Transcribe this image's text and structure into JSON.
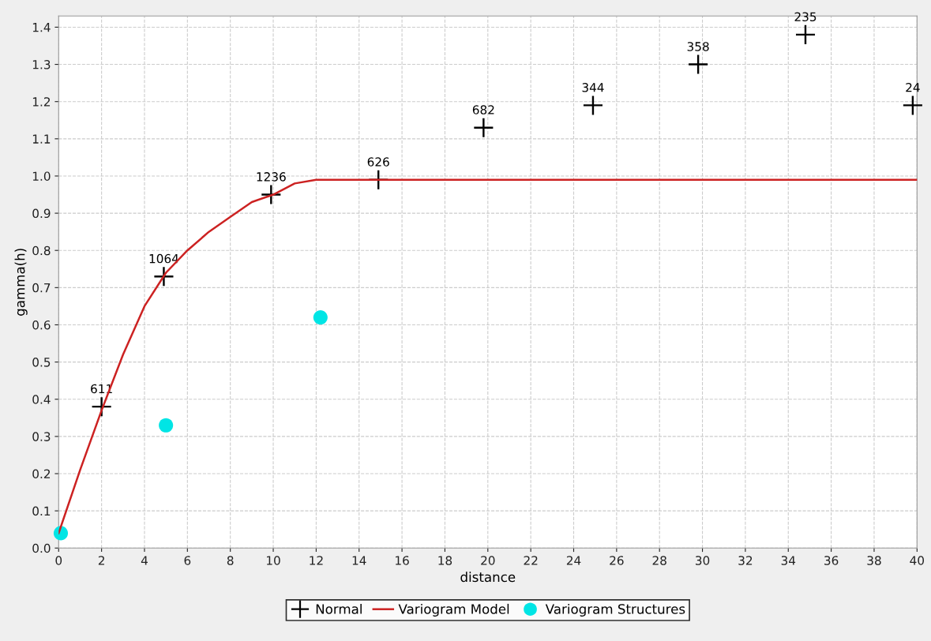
{
  "chart_data": {
    "type": "scatter",
    "xlabel": "distance",
    "ylabel": "gamma(h)",
    "xlim": [
      0,
      40
    ],
    "xticks": [
      0,
      2,
      4,
      6,
      8,
      10,
      12,
      14,
      16,
      18,
      20,
      22,
      24,
      26,
      28,
      30,
      32,
      34,
      36,
      38,
      40
    ],
    "ylim": [
      0,
      1.43
    ],
    "yticks": [
      {
        "value": 0,
        "label": "0.0"
      },
      0.1,
      0.2,
      0.3,
      0.4,
      0.5,
      0.6,
      0.7,
      0.8,
      0.9,
      {
        "value": 1,
        "label": "1.0"
      },
      1.1,
      1.2,
      1.3,
      1.4
    ],
    "grid": true,
    "legend": "bottom",
    "annotations": [
      {
        "text": "611",
        "x": 2,
        "y": 0.38
      },
      {
        "text": "1064",
        "x": 4.9,
        "y": 0.73
      },
      {
        "text": "1236",
        "x": 9.9,
        "y": 0.95
      },
      {
        "text": "626",
        "x": 14.9,
        "y": 0.99
      },
      {
        "text": "682",
        "x": 19.8,
        "y": 1.13
      },
      {
        "text": "344",
        "x": 24.9,
        "y": 1.19
      },
      {
        "text": "358",
        "x": 29.8,
        "y": 1.3
      },
      {
        "text": "235",
        "x": 34.8,
        "y": 1.38
      },
      {
        "text": "24",
        "x": 39.8,
        "y": 1.19
      }
    ],
    "series": [
      {
        "name": "Normal",
        "marker": "cross",
        "color": "#000000",
        "x": [
          2,
          4.9,
          9.9,
          14.9,
          19.8,
          24.9,
          29.8,
          34.8,
          39.8
        ],
        "values": [
          0.38,
          0.73,
          0.95,
          0.99,
          1.13,
          1.19,
          1.3,
          1.38,
          1.19
        ]
      },
      {
        "name": "Variogram Model",
        "type": "line",
        "color": "#cc2222",
        "x": [
          0,
          1,
          2,
          3,
          4,
          5,
          6,
          7,
          8,
          9,
          10,
          11,
          12,
          40
        ],
        "values": [
          0.04,
          0.21,
          0.37,
          0.52,
          0.65,
          0.74,
          0.8,
          0.85,
          0.89,
          0.93,
          0.95,
          0.98,
          0.99,
          0.99
        ]
      },
      {
        "name": "Variogram Structures",
        "marker": "circle",
        "color": "#00e5e5",
        "x": [
          0.1,
          5.0,
          12.2
        ],
        "values": [
          0.04,
          0.33,
          0.62
        ]
      }
    ]
  }
}
